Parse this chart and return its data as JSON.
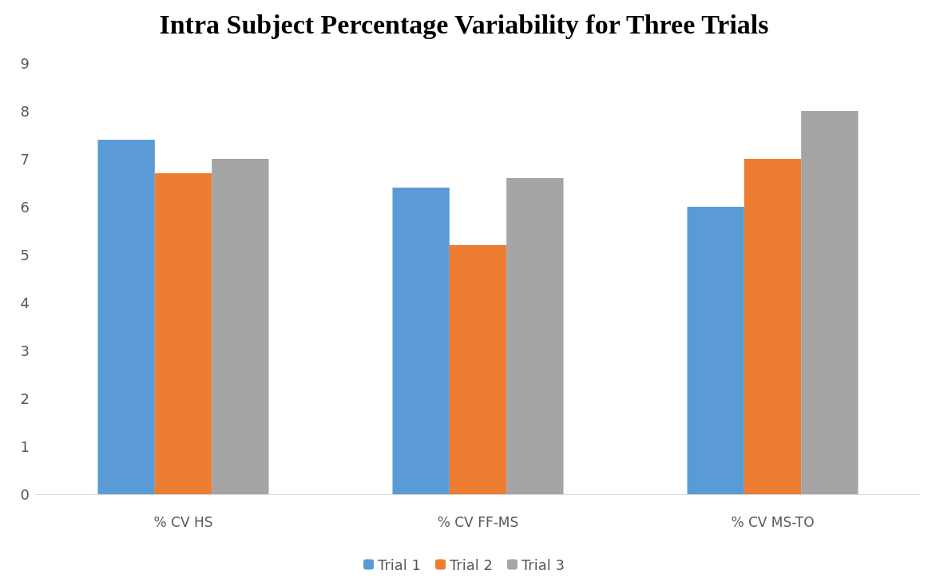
{
  "chart_data": {
    "type": "bar",
    "title": "Intra Subject Percentage Variability for Three Trials",
    "categories": [
      "% CV HS",
      "% CV FF-MS",
      "% CV MS-TO"
    ],
    "series": [
      {
        "name": "Trial 1",
        "color": "#5b9bd5",
        "values": [
          7.4,
          6.4,
          6.0
        ]
      },
      {
        "name": "Trial 2",
        "color": "#ed7d31",
        "values": [
          6.7,
          5.2,
          7.0
        ]
      },
      {
        "name": "Trial 3",
        "color": "#a5a5a5",
        "values": [
          7.0,
          6.6,
          8.0
        ]
      }
    ],
    "ylim": [
      0,
      9
    ],
    "yticks": [
      0,
      1,
      2,
      3,
      4,
      5,
      6,
      7,
      8,
      9
    ],
    "grid": false,
    "legend": "bottom"
  }
}
